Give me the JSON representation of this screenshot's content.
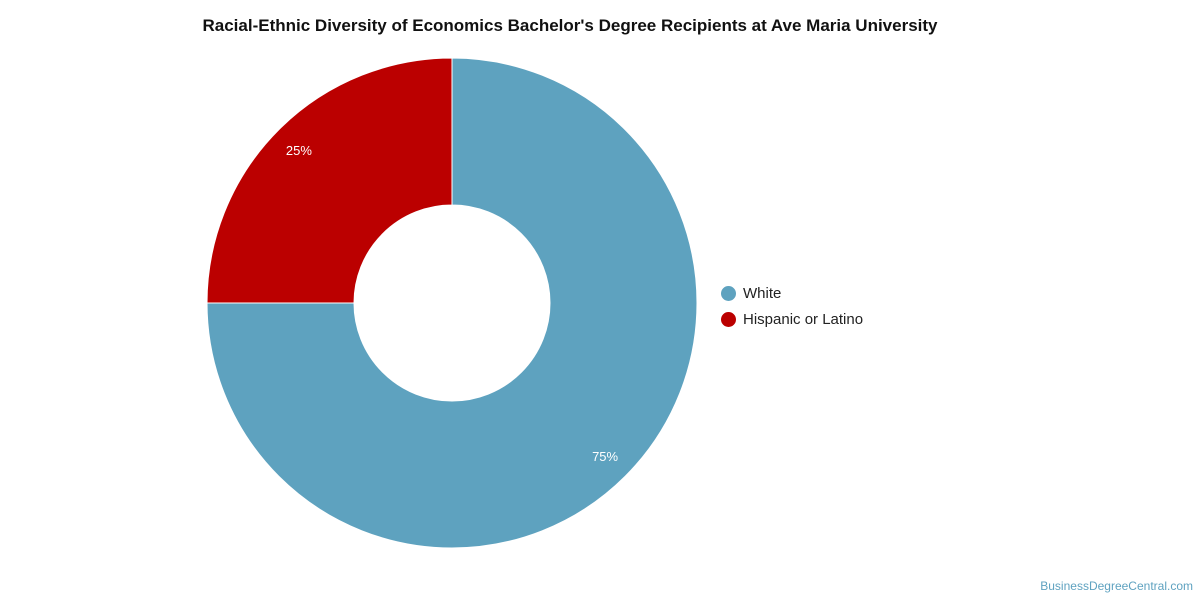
{
  "chart_data": {
    "type": "pie",
    "variant": "donut",
    "title": "Racial-Ethnic Diversity of Economics Bachelor's Degree Recipients at Ave Maria University",
    "slices": [
      {
        "name": "White",
        "value": 75,
        "label": "75%",
        "color": "#5ea2bf"
      },
      {
        "name": "Hispanic or Latino",
        "value": 25,
        "label": "25%",
        "color": "#bb0000"
      }
    ],
    "legend_position": "right"
  },
  "credit": "BusinessDegreeCentral.com"
}
